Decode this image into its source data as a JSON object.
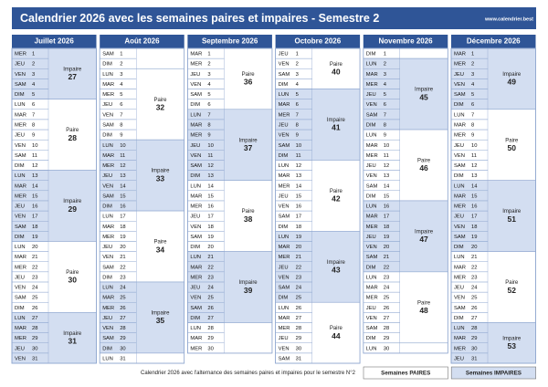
{
  "header": {
    "title": "Calendrier 2026 avec les semaines paires et impaires - Semestre 2",
    "website": "www.calendrier.best"
  },
  "months": [
    {
      "name": "Juillet 2026",
      "weeks": [
        {
          "label": "Impaire",
          "number": 27,
          "fill": "#d3def1",
          "days": [
            [
              "MER",
              1
            ],
            [
              "JEU",
              2
            ],
            [
              "VEN",
              3
            ],
            [
              "SAM",
              4
            ],
            [
              "DIM",
              5
            ]
          ]
        },
        {
          "label": "Paire",
          "number": 28,
          "fill": "#ffffff",
          "days": [
            [
              "LUN",
              6
            ],
            [
              "MAR",
              7
            ],
            [
              "MER",
              8
            ],
            [
              "JEU",
              9
            ],
            [
              "VEN",
              10
            ],
            [
              "SAM",
              11
            ],
            [
              "DIM",
              12
            ]
          ]
        },
        {
          "label": "Impaire",
          "number": 29,
          "fill": "#d3def1",
          "days": [
            [
              "LUN",
              13
            ],
            [
              "MAR",
              14
            ],
            [
              "MER",
              15
            ],
            [
              "JEU",
              16
            ],
            [
              "VEN",
              17
            ],
            [
              "SAM",
              18
            ],
            [
              "DIM",
              19
            ]
          ]
        },
        {
          "label": "Paire",
          "number": 30,
          "fill": "#ffffff",
          "days": [
            [
              "LUN",
              20
            ],
            [
              "MAR",
              21
            ],
            [
              "MER",
              22
            ],
            [
              "JEU",
              23
            ],
            [
              "VEN",
              24
            ],
            [
              "SAM",
              25
            ],
            [
              "DIM",
              26
            ]
          ]
        },
        {
          "label": "Impaire",
          "number": 31,
          "fill": "#d3def1",
          "days": [
            [
              "LUN",
              27
            ],
            [
              "MAR",
              28
            ],
            [
              "MER",
              29
            ],
            [
              "JEU",
              30
            ],
            [
              "VEN",
              31
            ]
          ]
        }
      ]
    },
    {
      "name": "Août 2026",
      "weeks": [
        {
          "fill": "#ffffff",
          "days": [
            [
              "SAM",
              1
            ],
            [
              "DIM",
              2
            ]
          ]
        },
        {
          "label": "Paire",
          "number": 32,
          "fill": "#ffffff",
          "days": [
            [
              "LUN",
              3
            ],
            [
              "MAR",
              4
            ],
            [
              "MER",
              5
            ],
            [
              "JEU",
              6
            ],
            [
              "VEN",
              7
            ],
            [
              "SAM",
              8
            ],
            [
              "DIM",
              9
            ]
          ]
        },
        {
          "label": "Impaire",
          "number": 33,
          "fill": "#d3def1",
          "days": [
            [
              "LUN",
              10
            ],
            [
              "MAR",
              11
            ],
            [
              "MER",
              12
            ],
            [
              "JEU",
              13
            ],
            [
              "VEN",
              14
            ],
            [
              "SAM",
              15
            ],
            [
              "DIM",
              16
            ]
          ]
        },
        {
          "label": "Paire",
          "number": 34,
          "fill": "#ffffff",
          "days": [
            [
              "LUN",
              17
            ],
            [
              "MAR",
              18
            ],
            [
              "MER",
              19
            ],
            [
              "JEU",
              20
            ],
            [
              "VEN",
              21
            ],
            [
              "SAM",
              22
            ],
            [
              "DIM",
              23
            ]
          ]
        },
        {
          "label": "Impaire",
          "number": 35,
          "fill": "#d3def1",
          "days": [
            [
              "LUN",
              24
            ],
            [
              "MAR",
              25
            ],
            [
              "MER",
              26
            ],
            [
              "JEU",
              27
            ],
            [
              "VEN",
              28
            ],
            [
              "SAM",
              29
            ],
            [
              "DIM",
              30
            ]
          ]
        },
        {
          "fill": "#ffffff",
          "days": [
            [
              "LUN",
              31
            ]
          ]
        }
      ]
    },
    {
      "name": "Septembre 2026",
      "weeks": [
        {
          "label": "Paire",
          "number": 36,
          "fill": "#ffffff",
          "days": [
            [
              "MAR",
              1
            ],
            [
              "MER",
              2
            ],
            [
              "JEU",
              3
            ],
            [
              "VEN",
              4
            ],
            [
              "SAM",
              5
            ],
            [
              "DIM",
              6
            ]
          ]
        },
        {
          "label": "Impaire",
          "number": 37,
          "fill": "#d3def1",
          "days": [
            [
              "LUN",
              7
            ],
            [
              "MAR",
              8
            ],
            [
              "MER",
              9
            ],
            [
              "JEU",
              10
            ],
            [
              "VEN",
              11
            ],
            [
              "SAM",
              12
            ],
            [
              "DIM",
              13
            ]
          ]
        },
        {
          "label": "Paire",
          "number": 38,
          "fill": "#ffffff",
          "days": [
            [
              "LUN",
              14
            ],
            [
              "MAR",
              15
            ],
            [
              "MER",
              16
            ],
            [
              "JEU",
              17
            ],
            [
              "VEN",
              18
            ],
            [
              "SAM",
              19
            ],
            [
              "DIM",
              20
            ]
          ]
        },
        {
          "label": "Impaire",
          "number": 39,
          "fill": "#d3def1",
          "days": [
            [
              "LUN",
              21
            ],
            [
              "MAR",
              22
            ],
            [
              "MER",
              23
            ],
            [
              "JEU",
              24
            ],
            [
              "VEN",
              25
            ],
            [
              "SAM",
              26
            ],
            [
              "DIM",
              27
            ]
          ]
        },
        {
          "fill": "#ffffff",
          "days": [
            [
              "LUN",
              28
            ],
            [
              "MAR",
              29
            ],
            [
              "MER",
              30
            ]
          ]
        }
      ]
    },
    {
      "name": "Octobre 2026",
      "weeks": [
        {
          "label": "Paire",
          "number": 40,
          "fill": "#ffffff",
          "days": [
            [
              "JEU",
              1
            ],
            [
              "VEN",
              2
            ],
            [
              "SAM",
              3
            ],
            [
              "DIM",
              4
            ]
          ]
        },
        {
          "label": "Impaire",
          "number": 41,
          "fill": "#d3def1",
          "days": [
            [
              "LUN",
              5
            ],
            [
              "MAR",
              6
            ],
            [
              "MER",
              7
            ],
            [
              "JEU",
              8
            ],
            [
              "VEN",
              9
            ],
            [
              "SAM",
              10
            ],
            [
              "DIM",
              11
            ]
          ]
        },
        {
          "label": "Paire",
          "number": 42,
          "fill": "#ffffff",
          "days": [
            [
              "LUN",
              12
            ],
            [
              "MAR",
              13
            ],
            [
              "MER",
              14
            ],
            [
              "JEU",
              15
            ],
            [
              "VEN",
              16
            ],
            [
              "SAM",
              17
            ],
            [
              "DIM",
              18
            ]
          ]
        },
        {
          "label": "Impaire",
          "number": 43,
          "fill": "#d3def1",
          "days": [
            [
              "LUN",
              19
            ],
            [
              "MAR",
              20
            ],
            [
              "MER",
              21
            ],
            [
              "JEU",
              22
            ],
            [
              "VEN",
              23
            ],
            [
              "SAM",
              24
            ],
            [
              "DIM",
              25
            ]
          ]
        },
        {
          "label": "Paire",
          "number": 44,
          "fill": "#ffffff",
          "days": [
            [
              "LUN",
              26
            ],
            [
              "MAR",
              27
            ],
            [
              "MER",
              28
            ],
            [
              "JEU",
              29
            ],
            [
              "VEN",
              30
            ],
            [
              "SAM",
              31
            ]
          ]
        }
      ]
    },
    {
      "name": "Novembre 2026",
      "weeks": [
        {
          "fill": "#ffffff",
          "days": [
            [
              "DIM",
              1
            ]
          ]
        },
        {
          "label": "Impaire",
          "number": 45,
          "fill": "#d3def1",
          "days": [
            [
              "LUN",
              2
            ],
            [
              "MAR",
              3
            ],
            [
              "MER",
              4
            ],
            [
              "JEU",
              5
            ],
            [
              "VEN",
              6
            ],
            [
              "SAM",
              7
            ],
            [
              "DIM",
              8
            ]
          ]
        },
        {
          "label": "Paire",
          "number": 46,
          "fill": "#ffffff",
          "days": [
            [
              "LUN",
              9
            ],
            [
              "MAR",
              10
            ],
            [
              "MER",
              11
            ],
            [
              "JEU",
              12
            ],
            [
              "VEN",
              13
            ],
            [
              "SAM",
              14
            ],
            [
              "DIM",
              15
            ]
          ]
        },
        {
          "label": "Impaire",
          "number": 47,
          "fill": "#d3def1",
          "days": [
            [
              "LUN",
              16
            ],
            [
              "MAR",
              17
            ],
            [
              "MER",
              18
            ],
            [
              "JEU",
              19
            ],
            [
              "VEN",
              20
            ],
            [
              "SAM",
              21
            ],
            [
              "DIM",
              22
            ]
          ]
        },
        {
          "label": "Paire",
          "number": 48,
          "fill": "#ffffff",
          "days": [
            [
              "LUN",
              23
            ],
            [
              "MAR",
              24
            ],
            [
              "MER",
              25
            ],
            [
              "JEU",
              26
            ],
            [
              "VEN",
              27
            ],
            [
              "SAM",
              28
            ],
            [
              "DIM",
              29
            ]
          ]
        },
        {
          "fill": "#ffffff",
          "days": [
            [
              "LUN",
              30
            ]
          ]
        }
      ]
    },
    {
      "name": "Décembre 2026",
      "weeks": [
        {
          "label": "Impaire",
          "number": 49,
          "fill": "#d3def1",
          "days": [
            [
              "MAR",
              1
            ],
            [
              "MER",
              2
            ],
            [
              "JEU",
              3
            ],
            [
              "VEN",
              4
            ],
            [
              "SAM",
              5
            ],
            [
              "DIM",
              6
            ]
          ]
        },
        {
          "label": "Paire",
          "number": 50,
          "fill": "#ffffff",
          "days": [
            [
              "LUN",
              7
            ],
            [
              "MAR",
              8
            ],
            [
              "MER",
              9
            ],
            [
              "JEU",
              10
            ],
            [
              "VEN",
              11
            ],
            [
              "SAM",
              12
            ],
            [
              "DIM",
              13
            ]
          ]
        },
        {
          "label": "Impaire",
          "number": 51,
          "fill": "#d3def1",
          "days": [
            [
              "LUN",
              14
            ],
            [
              "MAR",
              15
            ],
            [
              "MER",
              16
            ],
            [
              "JEU",
              17
            ],
            [
              "VEN",
              18
            ],
            [
              "SAM",
              19
            ],
            [
              "DIM",
              20
            ]
          ]
        },
        {
          "label": "Paire",
          "number": 52,
          "fill": "#ffffff",
          "days": [
            [
              "LUN",
              21
            ],
            [
              "MAR",
              22
            ],
            [
              "MER",
              23
            ],
            [
              "JEU",
              24
            ],
            [
              "VEN",
              25
            ],
            [
              "SAM",
              26
            ],
            [
              "DIM",
              27
            ]
          ]
        },
        {
          "label": "Impaire",
          "number": 53,
          "fill": "#d3def1",
          "days": [
            [
              "LUN",
              28
            ],
            [
              "MAR",
              29
            ],
            [
              "MER",
              30
            ],
            [
              "JEU",
              31
            ]
          ]
        }
      ]
    }
  ],
  "footer": {
    "text": "Calendrier 2026 avec l'alternance des semaines paires et impaires pour le semestre N°2",
    "legend": [
      {
        "label": "Semaines PAIRES",
        "fill": "#ffffff"
      },
      {
        "label": "Semaines IMPAIRES",
        "fill": "#d3def1"
      }
    ]
  }
}
